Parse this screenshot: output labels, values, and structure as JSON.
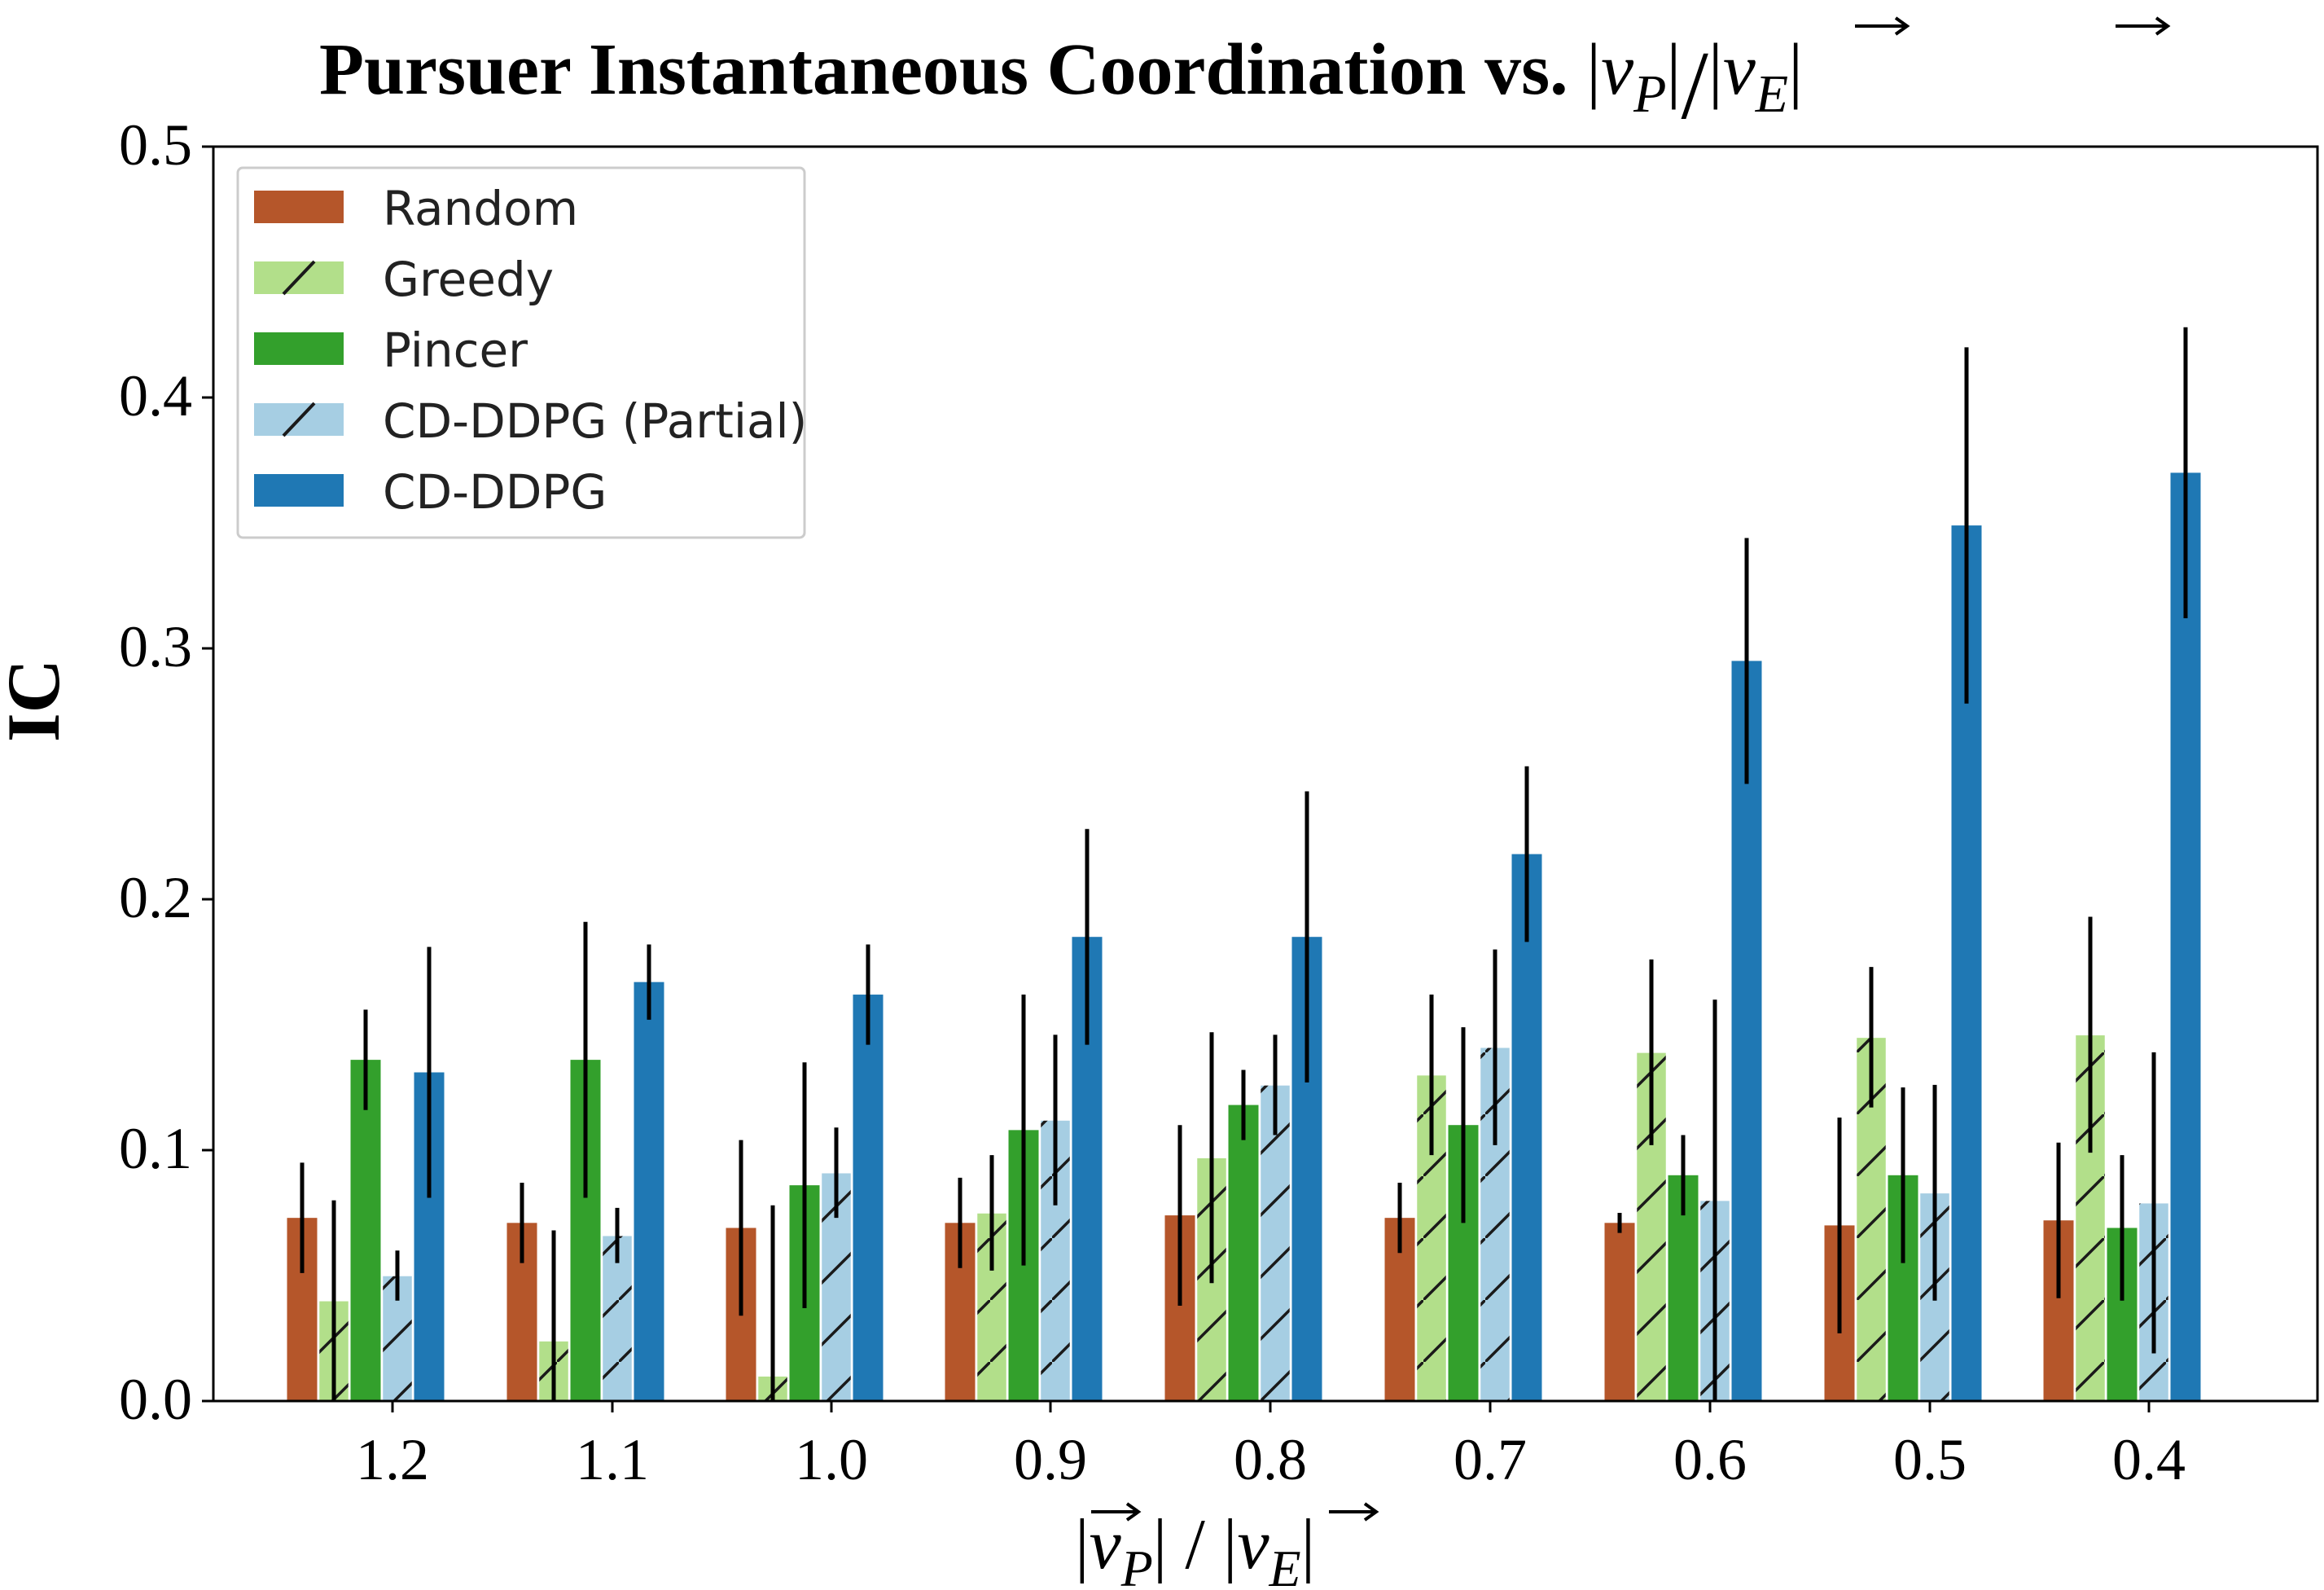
{
  "chart_data": {
    "type": "bar",
    "title_prefix": "Pursuer Instantaneous Coordination vs. ",
    "title_ratio": {
      "left_sub": "P",
      "right_sub": "E",
      "var": "v",
      "slash": "/"
    },
    "ylabel": "IC",
    "xlabel_ratio": {
      "left_sub": "P",
      "right_sub": "E",
      "var": "v",
      "slash": "/"
    },
    "ylim": [
      0.0,
      0.5
    ],
    "yticks": [
      "0.0",
      "0.1",
      "0.2",
      "0.3",
      "0.4",
      "0.5"
    ],
    "categories": [
      "1.2",
      "1.1",
      "1.0",
      "0.9",
      "0.8",
      "0.7",
      "0.6",
      "0.5",
      "0.4"
    ],
    "legend_position": "top-left",
    "series": [
      {
        "name": "Random",
        "color": "#b5562a",
        "hatch": false,
        "values": [
          0.073,
          0.071,
          0.069,
          0.071,
          0.074,
          0.073,
          0.071,
          0.07,
          0.072
        ],
        "errors": [
          0.022,
          0.016,
          0.035,
          0.018,
          0.036,
          0.014,
          0.004,
          0.043,
          0.031
        ]
      },
      {
        "name": "Greedy",
        "color": "#b2df8a",
        "hatch": true,
        "values": [
          0.04,
          0.024,
          0.01,
          0.075,
          0.097,
          0.13,
          0.139,
          0.145,
          0.146
        ],
        "errors": [
          0.04,
          0.044,
          0.068,
          0.023,
          0.05,
          0.032,
          0.037,
          0.028,
          0.047
        ]
      },
      {
        "name": "Pincer",
        "color": "#33a02c",
        "hatch": false,
        "values": [
          0.136,
          0.136,
          0.086,
          0.108,
          0.118,
          0.11,
          0.09,
          0.09,
          0.069
        ],
        "errors": [
          0.02,
          0.055,
          0.049,
          0.054,
          0.014,
          0.039,
          0.016,
          0.035,
          0.029
        ]
      },
      {
        "name": "CD-DDPG (Partial)",
        "color": "#a6cee3",
        "hatch": true,
        "values": [
          0.05,
          0.066,
          0.091,
          0.112,
          0.126,
          0.141,
          0.08,
          0.083,
          0.079
        ],
        "errors": [
          0.01,
          0.011,
          0.018,
          0.034,
          0.02,
          0.039,
          0.08,
          0.043,
          0.06
        ]
      },
      {
        "name": "CD-DDPG",
        "color": "#1f78b4",
        "hatch": false,
        "values": [
          0.131,
          0.167,
          0.162,
          0.185,
          0.185,
          0.218,
          0.295,
          0.349,
          0.37
        ],
        "errors": [
          0.05,
          0.015,
          0.02,
          0.043,
          0.058,
          0.035,
          0.049,
          0.071,
          0.058
        ]
      }
    ]
  }
}
